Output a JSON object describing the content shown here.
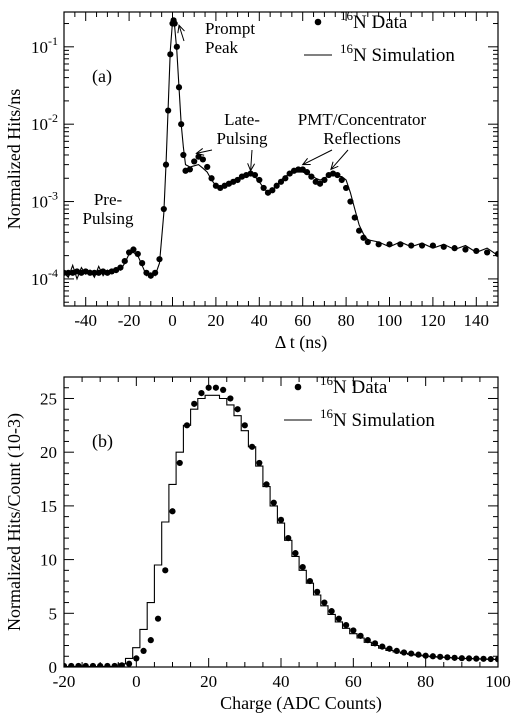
{
  "chart_data": [
    {
      "type": "line",
      "panel_label": "(a)",
      "xlabel": "Δ t (ns)",
      "ylabel": "Normalized Hits/ns",
      "xlim": [
        -50,
        150
      ],
      "ylim_log10": [
        -4.35,
        -0.55
      ],
      "y_scale": "log",
      "x_ticks": [
        -40,
        -20,
        0,
        20,
        40,
        60,
        80,
        100,
        120,
        140
      ],
      "x_tick_labels": [
        "-40",
        "-20",
        "0",
        "20",
        "40",
        "60",
        "80",
        "100",
        "120",
        "140"
      ],
      "y_ticks": [
        0.0001,
        0.001,
        0.01,
        0.1
      ],
      "y_tick_labels": [
        {
          "base": "10",
          "exp": "-4"
        },
        {
          "base": "10",
          "exp": "-3"
        },
        {
          "base": "10",
          "exp": "-2"
        },
        {
          "base": "10",
          "exp": "-1"
        }
      ],
      "legend": {
        "position": "top-right",
        "entries": [
          {
            "marker": "dot",
            "sup": "16",
            "text": "N Data"
          },
          {
            "marker": "line",
            "sup": "16",
            "text": "N Simulation"
          }
        ]
      },
      "annotations": [
        {
          "lines": [
            "Prompt",
            "Peak"
          ],
          "x": 3,
          "y": 0.19
        },
        {
          "lines": [
            "Late-",
            "Pulsing"
          ],
          "x": 11,
          "y": 0.0042
        },
        {
          "lines": [
            "Late-",
            "Pulsing"
          ],
          "x": 36,
          "y": 0.0025
        },
        {
          "lines": [
            "PMT/Concentrator",
            "Reflections"
          ],
          "x": 60,
          "y": 0.003
        },
        {
          "lines": [
            "PMT/Concentrator",
            "Reflections"
          ],
          "x": 73,
          "y": 0.0026
        },
        {
          "lines": [
            "Pre-",
            "Pulsing"
          ],
          "x": -30,
          "y": 0.0008
        }
      ],
      "series": [
        {
          "name": "16N Data",
          "style": "dots",
          "x": [
            -50,
            -48,
            -46,
            -44,
            -42,
            -40,
            -38,
            -36,
            -34,
            -32,
            -30,
            -28,
            -26,
            -24,
            -22,
            -20,
            -18,
            -16,
            -14,
            -12,
            -10,
            -8,
            -6,
            -4,
            -3,
            -2,
            -1,
            0,
            0.5,
            1,
            2,
            3,
            4,
            5,
            6,
            8,
            10,
            12,
            14,
            16,
            18,
            20,
            22,
            24,
            26,
            28,
            30,
            32,
            34,
            36,
            38,
            40,
            42,
            44,
            46,
            48,
            50,
            52,
            54,
            56,
            58,
            60,
            62,
            64,
            66,
            68,
            70,
            72,
            74,
            76,
            78,
            80,
            82,
            84,
            86,
            88,
            90,
            95,
            100,
            105,
            110,
            115,
            120,
            125,
            130,
            135,
            140,
            145,
            150
          ],
          "y": [
            0.00012,
            0.00012,
            0.00012,
            0.000125,
            0.00012,
            0.000125,
            0.00012,
            0.00012,
            0.00012,
            0.000125,
            0.00012,
            0.000125,
            0.00013,
            0.00014,
            0.00017,
            0.00022,
            0.00024,
            0.00021,
            0.00016,
            0.00012,
            0.00011,
            0.00012,
            0.00018,
            0.0008,
            0.003,
            0.015,
            0.08,
            0.2,
            0.22,
            0.2,
            0.1,
            0.03,
            0.01,
            0.004,
            0.0025,
            0.0026,
            0.0033,
            0.0038,
            0.0035,
            0.0028,
            0.002,
            0.0016,
            0.0015,
            0.0016,
            0.0017,
            0.0018,
            0.0019,
            0.0021,
            0.0022,
            0.0023,
            0.0022,
            0.0019,
            0.0015,
            0.0013,
            0.0014,
            0.0016,
            0.0018,
            0.002,
            0.0023,
            0.0025,
            0.0026,
            0.0026,
            0.0024,
            0.0021,
            0.0018,
            0.0017,
            0.0019,
            0.0022,
            0.0023,
            0.0022,
            0.0019,
            0.0015,
            0.001,
            0.00062,
            0.00042,
            0.00034,
            0.0003,
            0.00028,
            0.00028,
            0.00028,
            0.00027,
            0.00027,
            0.00027,
            0.00026,
            0.00025,
            0.00024,
            0.00023,
            0.00022,
            0.00021
          ]
        },
        {
          "name": "16N Simulation",
          "style": "line",
          "x": [
            -50,
            -48,
            -46,
            -44,
            -42,
            -40,
            -38,
            -36,
            -34,
            -32,
            -30,
            -28,
            -26,
            -24,
            -22,
            -20,
            -18,
            -16,
            -14,
            -12,
            -10,
            -8,
            -6,
            -4,
            -3,
            -2,
            -1,
            0,
            0.5,
            1,
            2,
            3,
            4,
            5,
            6,
            8,
            10,
            12,
            14,
            16,
            18,
            20,
            22,
            24,
            26,
            28,
            30,
            32,
            34,
            36,
            38,
            40,
            42,
            44,
            46,
            48,
            50,
            52,
            54,
            56,
            58,
            60,
            62,
            64,
            66,
            68,
            70,
            72,
            74,
            76,
            78,
            80,
            82,
            84,
            86,
            88,
            90,
            95,
            100,
            105,
            110,
            115,
            120,
            125,
            130,
            135,
            140,
            145,
            150
          ],
          "y": [
            0.00012,
            0.000105,
            0.00015,
            0.0001,
            0.00014,
            0.000115,
            0.00013,
            0.000105,
            0.000145,
            0.00011,
            0.00013,
            0.00012,
            0.00014,
            0.00013,
            0.00016,
            0.00021,
            0.00022,
            0.0002,
            0.00015,
            0.00011,
            0.00012,
            0.00011,
            0.00016,
            0.0007,
            0.003,
            0.017,
            0.09,
            0.21,
            0.2,
            0.18,
            0.09,
            0.03,
            0.01,
            0.005,
            0.003,
            0.0028,
            0.0029,
            0.003,
            0.0027,
            0.0024,
            0.0019,
            0.0016,
            0.0015,
            0.0016,
            0.0017,
            0.0019,
            0.002,
            0.0021,
            0.0022,
            0.0022,
            0.0021,
            0.0018,
            0.0015,
            0.0013,
            0.0014,
            0.0016,
            0.0019,
            0.0021,
            0.0023,
            0.0024,
            0.0024,
            0.0024,
            0.0023,
            0.0022,
            0.002,
            0.0019,
            0.002,
            0.0022,
            0.0022,
            0.0021,
            0.0021,
            0.0019,
            0.0013,
            0.0008,
            0.0005,
            0.00038,
            0.00032,
            0.0003,
            0.00026,
            0.0003,
            0.00026,
            0.00029,
            0.00025,
            0.00028,
            0.00024,
            0.00027,
            0.00022,
            0.00025,
            0.0002
          ]
        }
      ]
    },
    {
      "type": "line",
      "panel_label": "(b)",
      "xlabel": "Charge (ADC Counts)",
      "ylabel": "Normalized Hits/Count (10-3)",
      "xlim": [
        -20,
        100
      ],
      "ylim": [
        0,
        27
      ],
      "x_ticks": [
        -20,
        0,
        20,
        40,
        60,
        80,
        100
      ],
      "x_tick_labels": [
        "-20",
        "0",
        "20",
        "40",
        "60",
        "80",
        "100"
      ],
      "y_ticks": [
        0,
        5,
        10,
        15,
        20,
        25
      ],
      "y_tick_labels": [
        "0",
        "5",
        "10",
        "15",
        "20",
        "25"
      ],
      "legend": {
        "position": "top-right",
        "entries": [
          {
            "marker": "dot",
            "sup": "16",
            "text": "N Data"
          },
          {
            "marker": "line",
            "sup": "16",
            "text": "N Simulation"
          }
        ]
      },
      "series": [
        {
          "name": "16N Data",
          "style": "dots",
          "x": [
            -20,
            -18,
            -16,
            -14,
            -12,
            -10,
            -8,
            -6,
            -4,
            -2,
            0,
            2,
            4,
            6,
            8,
            10,
            12,
            14,
            16,
            18,
            20,
            22,
            24,
            26,
            28,
            30,
            32,
            34,
            36,
            38,
            40,
            42,
            44,
            46,
            48,
            50,
            52,
            54,
            56,
            58,
            60,
            62,
            64,
            66,
            68,
            70,
            72,
            74,
            76,
            78,
            80,
            82,
            84,
            86,
            88,
            90,
            92,
            94,
            96,
            98,
            100
          ],
          "y": [
            0.1,
            0.1,
            0.1,
            0.1,
            0.1,
            0.1,
            0.1,
            0.1,
            0.15,
            0.3,
            0.8,
            1.5,
            2.5,
            4.5,
            9,
            14.5,
            19,
            22.5,
            24.5,
            25.5,
            26,
            26,
            25.8,
            25,
            24,
            22.5,
            20.5,
            19,
            17,
            15.3,
            13.7,
            12,
            10.6,
            9.3,
            8,
            7,
            6,
            5.2,
            4.5,
            3.9,
            3.4,
            2.9,
            2.5,
            2.2,
            1.9,
            1.7,
            1.5,
            1.35,
            1.25,
            1.15,
            1.05,
            1,
            0.95,
            0.9,
            0.85,
            0.82,
            0.8,
            0.78,
            0.76,
            0.74,
            0.72
          ]
        },
        {
          "name": "16N Simulation",
          "style": "step",
          "x": [
            -20,
            -18,
            -16,
            -14,
            -12,
            -10,
            -8,
            -6,
            -4,
            -2,
            0,
            2,
            4,
            6,
            8,
            10,
            12,
            14,
            16,
            18,
            20,
            22,
            24,
            26,
            28,
            30,
            32,
            34,
            36,
            38,
            40,
            42,
            44,
            46,
            48,
            50,
            52,
            54,
            56,
            58,
            60,
            62,
            64,
            66,
            68,
            70,
            72,
            74,
            76,
            78,
            80,
            82,
            84,
            86,
            88,
            90,
            92,
            94,
            96,
            98,
            100
          ],
          "y": [
            0.05,
            0.05,
            0.05,
            0.05,
            0.05,
            0.05,
            0.05,
            0.05,
            0.3,
            0.8,
            1.8,
            3.5,
            6,
            9.5,
            13.5,
            17,
            20,
            22.5,
            24,
            25,
            25.3,
            25.3,
            25,
            24.4,
            23.4,
            22,
            20.5,
            18.7,
            16.8,
            15,
            13.4,
            11.8,
            10.3,
            9,
            7.8,
            6.7,
            5.7,
            4.9,
            4.2,
            3.6,
            3.1,
            2.7,
            2.3,
            2,
            1.75,
            1.55,
            1.4,
            1.28,
            1.18,
            1.1,
            1.02,
            0.96,
            0.92,
            0.88,
            0.84,
            0.8,
            0.78,
            0.76,
            0.74,
            0.72,
            0.7
          ]
        }
      ]
    }
  ]
}
